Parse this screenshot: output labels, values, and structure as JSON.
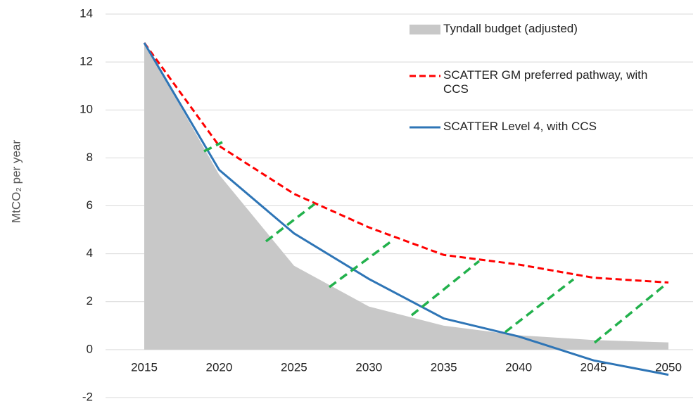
{
  "chart_data": {
    "type": "line",
    "y_label": "MtCO₂ per year",
    "x": [
      2015,
      2020,
      2025,
      2030,
      2035,
      2040,
      2045,
      2050
    ],
    "xlim": [
      2015,
      2050
    ],
    "xticks": [
      2015,
      2020,
      2025,
      2030,
      2035,
      2040,
      2045,
      2050
    ],
    "ylim": [
      -2,
      14
    ],
    "yticks": [
      -2,
      0,
      2,
      4,
      6,
      8,
      10,
      12,
      14
    ],
    "grid": true,
    "legend": "upper right",
    "series": [
      {
        "name": "Tyndall budget (adjusted)",
        "color": "#c8c8c8",
        "kind": "area",
        "values": [
          12.8,
          7.3,
          3.5,
          1.8,
          1.0,
          0.6,
          0.4,
          0.3
        ]
      },
      {
        "name": "SCATTER GM preferred pathway, with CCS",
        "color": "#ff0000",
        "kind": "dashed",
        "values": [
          12.8,
          8.5,
          6.5,
          5.1,
          3.95,
          3.55,
          3.0,
          2.8
        ]
      },
      {
        "name": "SCATTER Level 4, with CCS",
        "color": "#2e75b6",
        "kind": "solid",
        "values": [
          12.8,
          7.5,
          4.85,
          2.95,
          1.3,
          0.55,
          -0.45,
          -1.05
        ]
      }
    ]
  }
}
